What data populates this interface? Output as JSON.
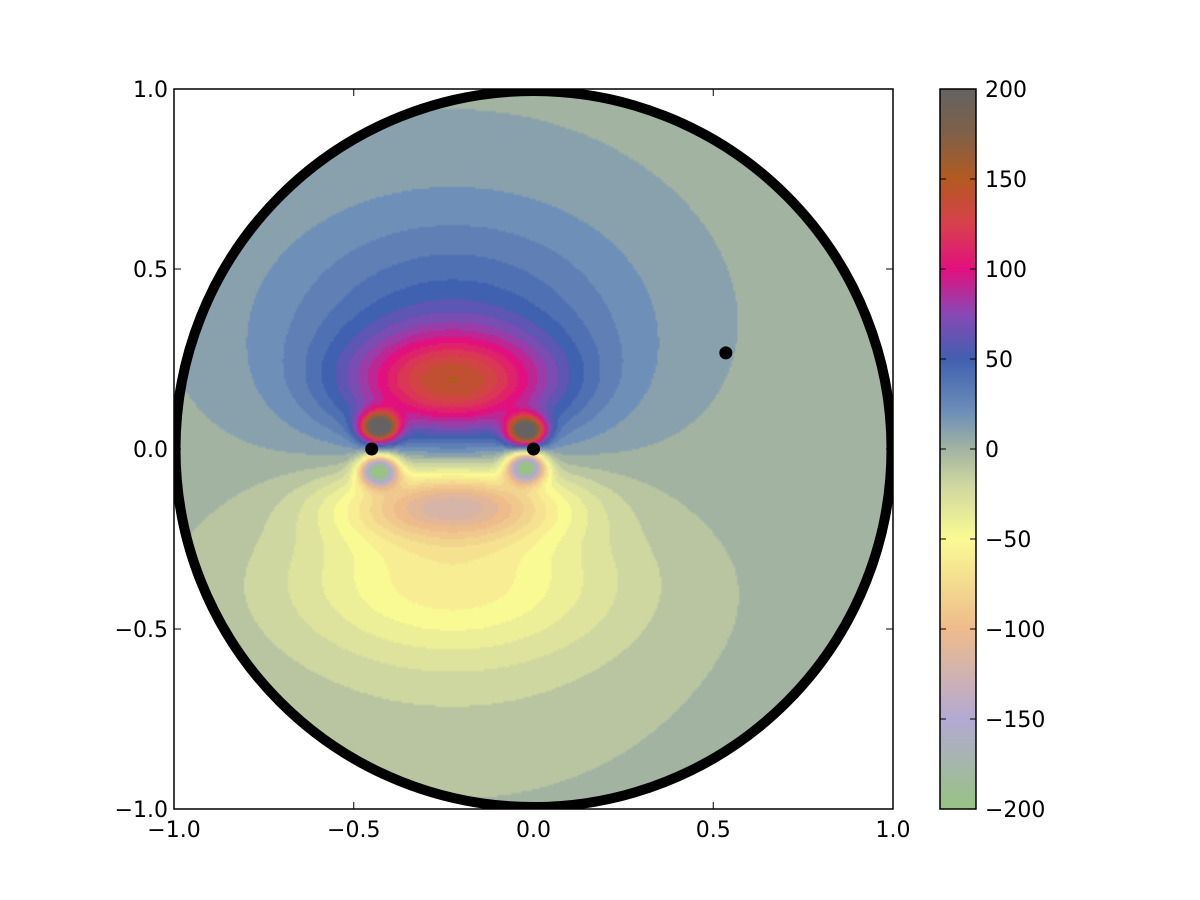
{
  "chart_data": {
    "type": "heatmap",
    "title": "",
    "xlabel": "",
    "ylabel": "",
    "xlim": [
      -1.0,
      1.0
    ],
    "ylim": [
      -1.0,
      1.0
    ],
    "x_ticks": [
      -1.0,
      -0.5,
      0.0,
      0.5,
      1.0
    ],
    "x_tick_labels": [
      "−1.0",
      "−0.5",
      "0.0",
      "0.5",
      "1.0"
    ],
    "y_ticks": [
      -1.0,
      -0.5,
      0.0,
      0.5,
      1.0
    ],
    "y_tick_labels": [
      "−1.0",
      "−0.5",
      "0.0",
      "0.5",
      "1.0"
    ],
    "domain": "unit disk",
    "grid": false,
    "colorbar": {
      "range": [
        -200,
        200
      ],
      "ticks": [
        200,
        150,
        100,
        50,
        0,
        -50,
        -100,
        -150,
        -200
      ],
      "tick_labels": [
        "200",
        "150",
        "100",
        "50",
        "0",
        "−50",
        "−100",
        "−150",
        "−200"
      ],
      "colors": [
        {
          "value": -200,
          "color": "#97c383"
        },
        {
          "value": -150,
          "color": "#b3a9d3"
        },
        {
          "value": -100,
          "color": "#eebb8b"
        },
        {
          "value": -50,
          "color": "#fafa94"
        },
        {
          "value": -20,
          "color": "#cfd7a0"
        },
        {
          "value": 0,
          "color": "#a2b3a2"
        },
        {
          "value": 20,
          "color": "#6e8fb8"
        },
        {
          "value": 50,
          "color": "#4060b0"
        },
        {
          "value": 75,
          "color": "#8848b4"
        },
        {
          "value": 100,
          "color": "#e2107e"
        },
        {
          "value": 125,
          "color": "#d8404c"
        },
        {
          "value": 150,
          "color": "#b25a20"
        },
        {
          "value": 175,
          "color": "#806048"
        },
        {
          "value": 200,
          "color": "#636363"
        }
      ]
    },
    "points": [
      {
        "x": -0.45,
        "y": 0.0
      },
      {
        "x": 0.0,
        "y": 0.0
      },
      {
        "x": 0.535,
        "y": 0.267
      }
    ],
    "field_features": [
      {
        "x": -0.225,
        "y": 0.18,
        "value": 100,
        "spread_x": 0.28,
        "spread_y": 0.14
      },
      {
        "x": -0.225,
        "y": 0.3,
        "value": 40,
        "spread_x": 0.45,
        "spread_y": 0.3
      },
      {
        "x": -0.225,
        "y": 0.4,
        "value": 15,
        "spread_x": 0.65,
        "spread_y": 0.5
      },
      {
        "x": -0.43,
        "y": 0.06,
        "value": 200,
        "spread_x": 0.05,
        "spread_y": 0.04
      },
      {
        "x": -0.02,
        "y": 0.05,
        "value": 200,
        "spread_x": 0.05,
        "spread_y": 0.04
      },
      {
        "x": -0.225,
        "y": -0.35,
        "value": -50,
        "spread_x": 0.45,
        "spread_y": 0.22
      },
      {
        "x": -0.225,
        "y": -0.5,
        "value": -15,
        "spread_x": 0.65,
        "spread_y": 0.45
      },
      {
        "x": -0.225,
        "y": -0.15,
        "value": -100,
        "spread_x": 0.3,
        "spread_y": 0.1
      },
      {
        "x": -0.43,
        "y": -0.06,
        "value": -200,
        "spread_x": 0.05,
        "spread_y": 0.04
      },
      {
        "x": -0.02,
        "y": -0.05,
        "value": -200,
        "spread_x": 0.05,
        "spread_y": 0.04
      }
    ]
  }
}
